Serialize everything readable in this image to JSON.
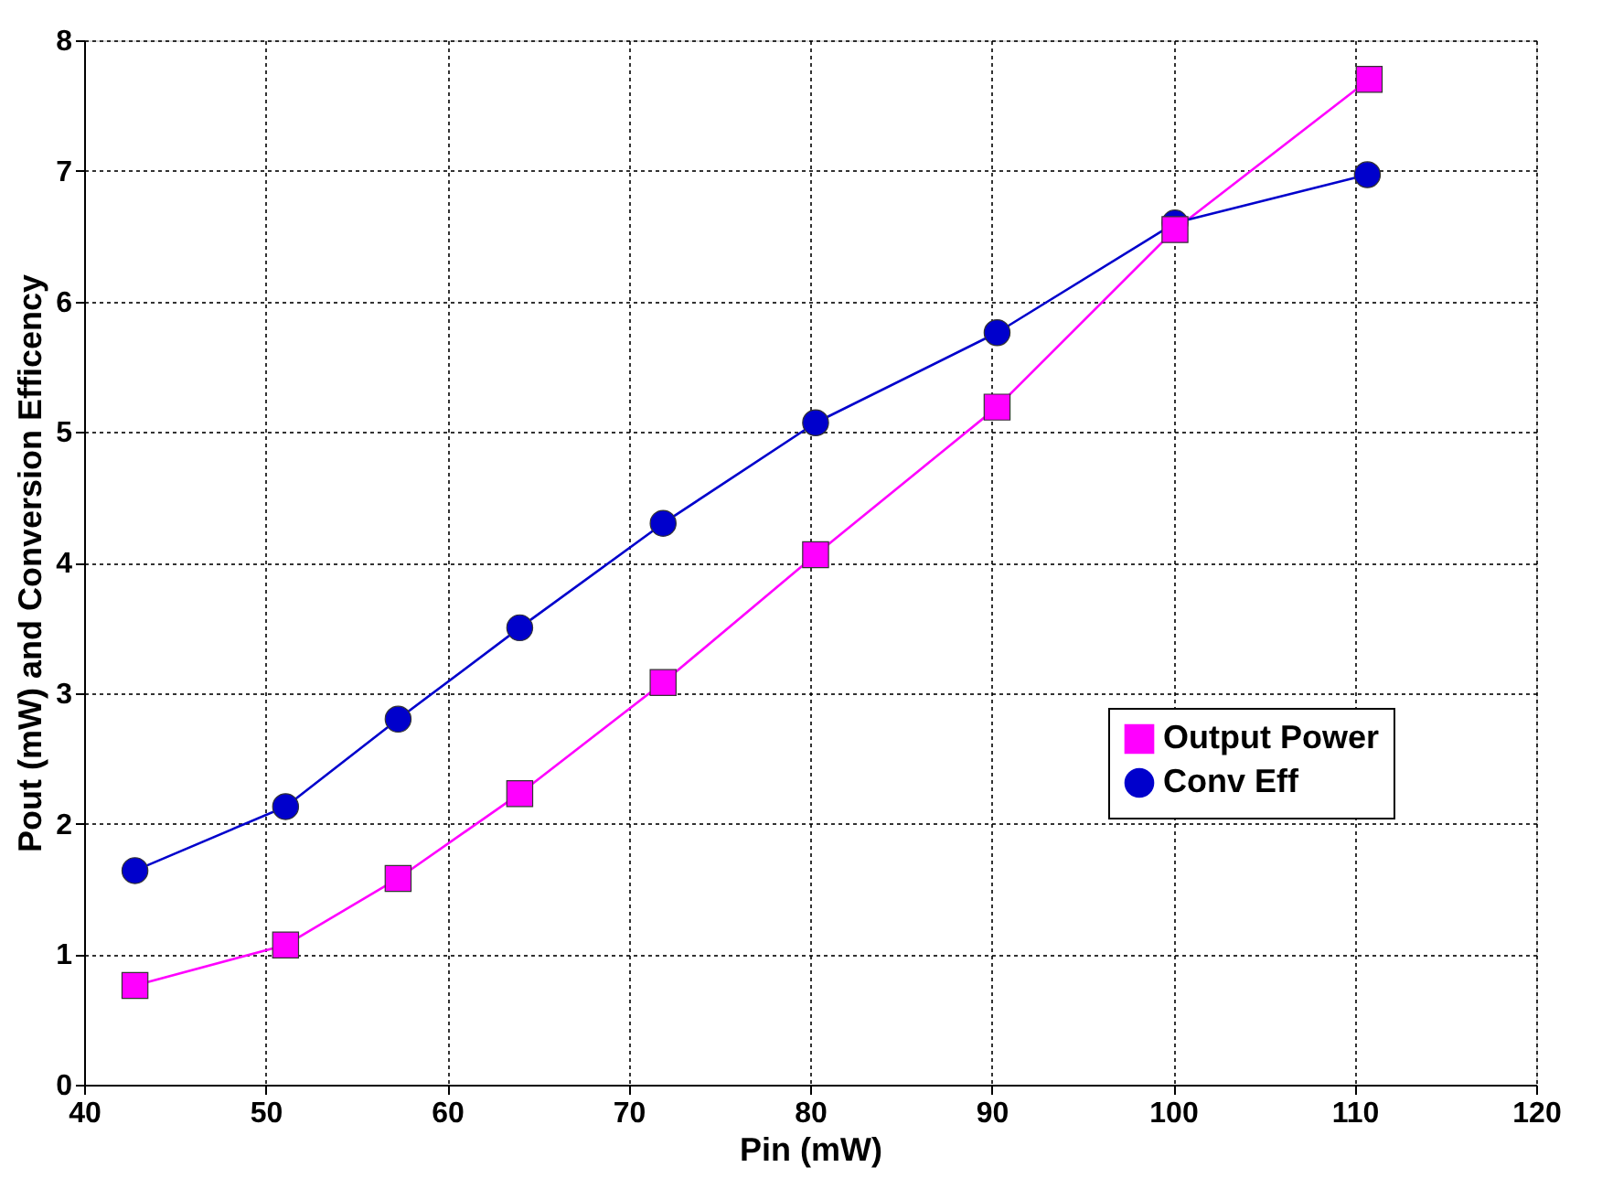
{
  "chart_data": {
    "type": "line",
    "xlabel": "Pin (mW)",
    "ylabel": "Pout (mW) and Conversion Efficency",
    "xlim": [
      40,
      120
    ],
    "xticks": [
      40,
      50,
      60,
      70,
      80,
      90,
      100,
      110,
      120
    ],
    "ylim": [
      0,
      8
    ],
    "yticks": [
      0,
      1,
      2,
      3,
      4,
      5,
      6,
      7,
      8
    ],
    "grid": true,
    "legend": "bottom right",
    "line_style": "solid",
    "series": [
      {
        "name": "Output Power",
        "color": "#ff00ff",
        "marker": "square",
        "x": [
          42.8,
          51.1,
          57.3,
          64.0,
          71.9,
          80.3,
          90.3,
          100.1,
          110.8
        ],
        "values": [
          0.76,
          1.07,
          1.58,
          2.23,
          3.08,
          4.06,
          5.19,
          6.55,
          7.7
        ]
      },
      {
        "name": "Conv Eff",
        "color": "#0000cc",
        "marker": "circle",
        "x": [
          42.8,
          51.1,
          57.3,
          64.0,
          71.9,
          80.3,
          90.3,
          100.1,
          110.7
        ],
        "values": [
          1.64,
          2.13,
          2.8,
          3.5,
          4.3,
          5.07,
          5.76,
          6.6,
          6.97
        ]
      }
    ]
  }
}
